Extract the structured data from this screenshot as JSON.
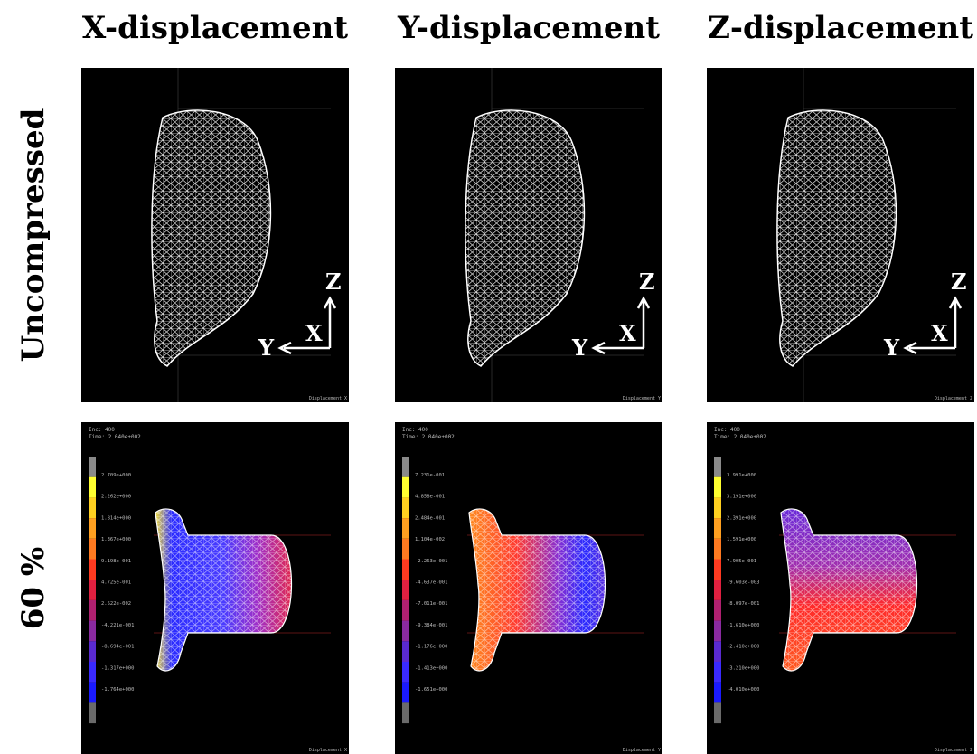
{
  "columns": [
    {
      "title": "X-displacement",
      "footer": "Displacement X",
      "legend": [
        "2.709e+000",
        "2.262e+000",
        "1.814e+000",
        "1.367e+000",
        "9.198e-001",
        "4.725e-001",
        "2.522e-002",
        "-4.221e-001",
        "-8.694e-001",
        "-1.317e+000",
        "-1.764e+000"
      ]
    },
    {
      "title": "Y-displacement",
      "footer": "Displacement Y",
      "legend": [
        "7.231e-001",
        "4.858e-001",
        "2.484e-001",
        "1.104e-002",
        "-2.263e-001",
        "-4.637e-001",
        "-7.011e-001",
        "-9.384e-001",
        "-1.176e+000",
        "-1.413e+000",
        "-1.651e+000"
      ]
    },
    {
      "title": "Z-displacement",
      "footer": "Displacement Z",
      "legend": [
        "3.991e+000",
        "3.191e+000",
        "2.391e+000",
        "1.591e+000",
        "7.905e-001",
        "-9.603e-003",
        "-8.097e-001",
        "-1.610e+000",
        "-2.410e+000",
        "-3.210e+000",
        "-4.010e+000"
      ]
    }
  ],
  "rows": [
    {
      "label": "Uncompressed"
    },
    {
      "label": "60 %"
    }
  ],
  "axes": {
    "z": "Z",
    "x": "X",
    "y": "Y"
  },
  "increment": "Inc:  400",
  "time": "Time:  2.040e+002"
}
